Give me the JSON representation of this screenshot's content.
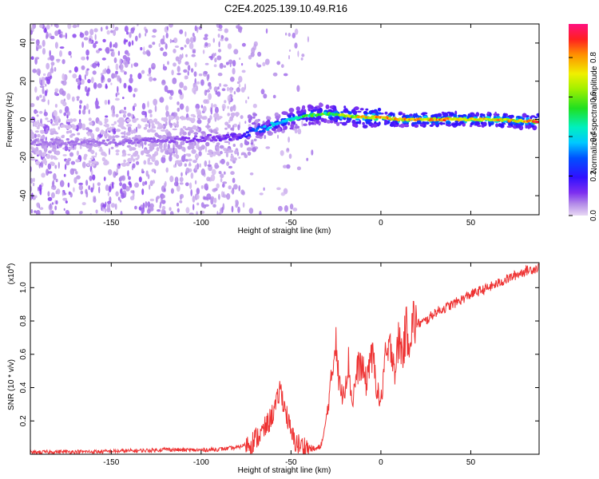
{
  "title": "C2E4.2025.139.10.49.R16",
  "chart_data": [
    {
      "type": "heatmap",
      "xlabel": "Height of straight line (km)",
      "ylabel": "Frequency (Hz)",
      "xlim": [
        -195,
        88
      ],
      "ylim": [
        -50,
        50
      ],
      "xticks": [
        -150,
        -100,
        -50,
        0,
        50
      ],
      "yticks": [
        -40,
        -20,
        0,
        20,
        40
      ],
      "colorbar": {
        "label": "Normalized spectral amplitude",
        "range": [
          0,
          0.97
        ],
        "ticks": [
          "0.0",
          "0.2",
          "0.4",
          "0.6",
          "0.8"
        ],
        "tick_values": [
          0.0,
          0.2,
          0.4,
          0.6,
          0.8
        ]
      },
      "ridge": {
        "description_points_x": [
          -190,
          -150,
          -120,
          -100,
          -80,
          -70,
          -60,
          -50,
          -40,
          -30,
          -20,
          -10,
          0,
          10,
          20,
          40,
          60,
          80,
          88
        ],
        "frequency_y": [
          -12,
          -12,
          -11,
          -10,
          -9,
          -6,
          -3,
          0,
          2,
          3,
          2,
          1,
          1,
          0,
          0,
          0,
          0,
          -1,
          -1
        ],
        "amplitude": [
          0.08,
          0.08,
          0.1,
          0.12,
          0.15,
          0.3,
          0.4,
          0.5,
          0.55,
          0.6,
          0.7,
          0.8,
          0.85,
          0.8,
          0.85,
          0.85,
          0.8,
          0.82,
          0.95
        ]
      }
    },
    {
      "type": "line",
      "xlabel": "Height of straight line (km)",
      "ylabel": "SNR (10 * v/v)",
      "yscale_label": "(x10",
      "yscale_exp": "4",
      "yscale_close": ")",
      "xlim": [
        -195,
        88
      ],
      "ylim": [
        0,
        1.15
      ],
      "xticks": [
        -150,
        -100,
        -50,
        0,
        50
      ],
      "yticks": [
        0.2,
        0.4,
        0.6,
        0.8,
        1.0
      ],
      "color": "#ee3333",
      "series": [
        {
          "x": [
            -195,
            -180,
            -160,
            -140,
            -125,
            -120,
            -110,
            -100,
            -90,
            -80,
            -72,
            -66,
            -62,
            -58,
            -56,
            -54,
            -52,
            -50,
            -48,
            -45,
            -40,
            -37,
            -34,
            -32,
            -30,
            -28,
            -26,
            -25,
            -24,
            -22,
            -20,
            -18,
            -16,
            -14,
            -12,
            -10,
            -8,
            -6,
            -4,
            -2,
            0,
            2,
            4,
            6,
            8,
            10,
            12,
            14,
            16,
            18,
            20,
            25,
            30,
            40,
            50,
            60,
            70,
            80,
            88
          ],
          "y": [
            0.01,
            0.015,
            0.015,
            0.02,
            0.025,
            0.03,
            0.025,
            0.025,
            0.03,
            0.04,
            0.07,
            0.13,
            0.2,
            0.3,
            0.4,
            0.3,
            0.22,
            0.12,
            0.08,
            0.05,
            0.04,
            0.03,
            0.04,
            0.1,
            0.25,
            0.4,
            0.6,
            0.75,
            0.5,
            0.35,
            0.42,
            0.55,
            0.3,
            0.45,
            0.55,
            0.5,
            0.42,
            0.6,
            0.55,
            0.38,
            0.3,
            0.55,
            0.6,
            0.65,
            0.5,
            0.7,
            0.6,
            0.75,
            0.7,
            0.8,
            0.78,
            0.8,
            0.85,
            0.9,
            0.96,
            1.0,
            1.05,
            1.1,
            1.12
          ]
        }
      ]
    }
  ]
}
